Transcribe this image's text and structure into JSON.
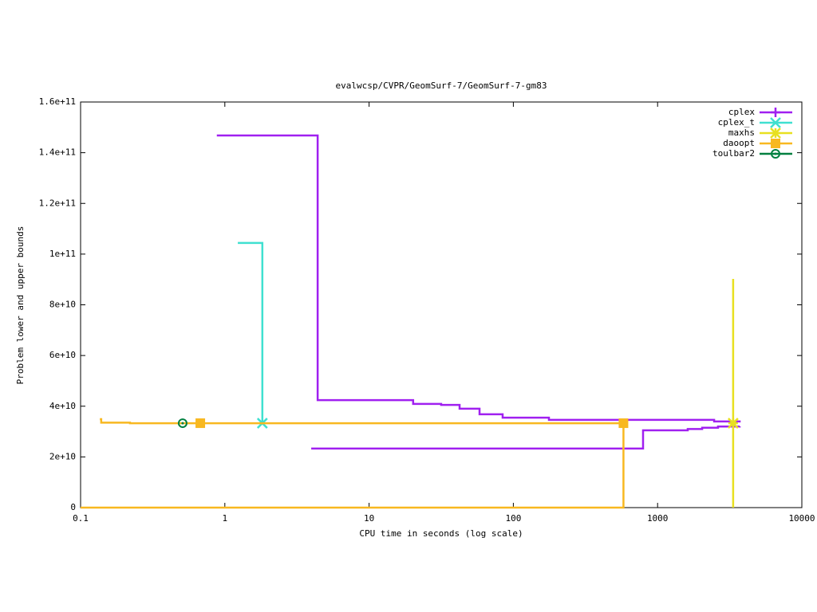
{
  "chart_data": {
    "type": "line",
    "steps": true,
    "title": "evalwcsp/CVPR/GeomSurf-7/GeomSurf-7-gm83",
    "x_label": "CPU time in seconds (log scale)",
    "y_label": "Problem lower and upper bounds",
    "xlog": true,
    "xlim": [
      0.1,
      10000
    ],
    "xticks": [
      0.1,
      1,
      10,
      100,
      1000,
      10000
    ],
    "ylim": [
      0,
      160000000000
    ],
    "yticks": [
      {
        "value": 0,
        "label": "0"
      },
      {
        "value": 20000000000,
        "label": "2e+10"
      },
      {
        "value": 40000000000,
        "label": "4e+10"
      },
      {
        "value": 60000000000,
        "label": "6e+10"
      },
      {
        "value": 80000000000,
        "label": "8e+10"
      },
      {
        "value": 100000000000,
        "label": "1e+11"
      },
      {
        "value": 120000000000,
        "label": "1.2e+11"
      },
      {
        "value": 140000000000,
        "label": "1.4e+11"
      },
      {
        "value": 160000000000,
        "label": "1.6e+11"
      }
    ],
    "legend": "top right",
    "series": [
      {
        "name": "cplex",
        "color": "#a020f0",
        "marker": "plus",
        "upper": {
          "x": [
            0.88,
            4.4,
            20.2,
            31.6,
            42.4,
            58.3,
            84.3,
            176.5,
            2466,
            3706
          ],
          "values": [
            146800000000,
            42400000000,
            40900000000,
            40500000000,
            39000000000,
            36800000000,
            35500000000,
            34600000000,
            34000000000,
            33600000000
          ]
        },
        "lower": {
          "x": [
            3.97,
            793,
            1618,
            2037,
            2624,
            3706
          ],
          "values": [
            23300000000,
            30500000000,
            31000000000,
            31500000000,
            32000000000,
            32100000000
          ]
        },
        "points": {
          "x": [],
          "values": []
        }
      },
      {
        "name": "cplex_t",
        "color": "#40e0d0",
        "marker": "cross",
        "upper": {
          "x": [
            1.23,
            1.82
          ],
          "values": [
            104400000000,
            33300000000
          ]
        },
        "lower": {
          "x": [],
          "values": []
        },
        "points": {
          "x": [
            1.82
          ],
          "values": [
            33300000000
          ]
        }
      },
      {
        "name": "maxhs",
        "color": "#e8e020",
        "marker": "star",
        "upper": {
          "x": [
            3340,
            3340
          ],
          "values": [
            90200000000,
            0
          ]
        },
        "lower": {
          "x": [],
          "values": []
        },
        "points": {
          "x": [
            3340
          ],
          "values": [
            33300000000
          ]
        }
      },
      {
        "name": "daoopt",
        "color": "#f8b820",
        "marker": "square",
        "upper": {
          "x": [
            0.136,
            0.139,
            0.22,
            580
          ],
          "values": [
            34900000000,
            33500000000,
            33300000000,
            33300000000
          ]
        },
        "lower": {
          "x": [
            0.1,
            580,
            580
          ],
          "values": [
            0,
            0,
            33300000000
          ]
        },
        "points": {
          "x": [
            0.676,
            580
          ],
          "values": [
            33300000000,
            33300000000
          ]
        }
      },
      {
        "name": "toulbar2",
        "color": "#008040",
        "marker": "circle",
        "upper": {
          "x": [
            0.51
          ],
          "values": [
            33300000000
          ]
        },
        "lower": {
          "x": [],
          "values": []
        },
        "points": {
          "x": [
            0.51
          ],
          "values": [
            33300000000
          ]
        }
      }
    ]
  }
}
